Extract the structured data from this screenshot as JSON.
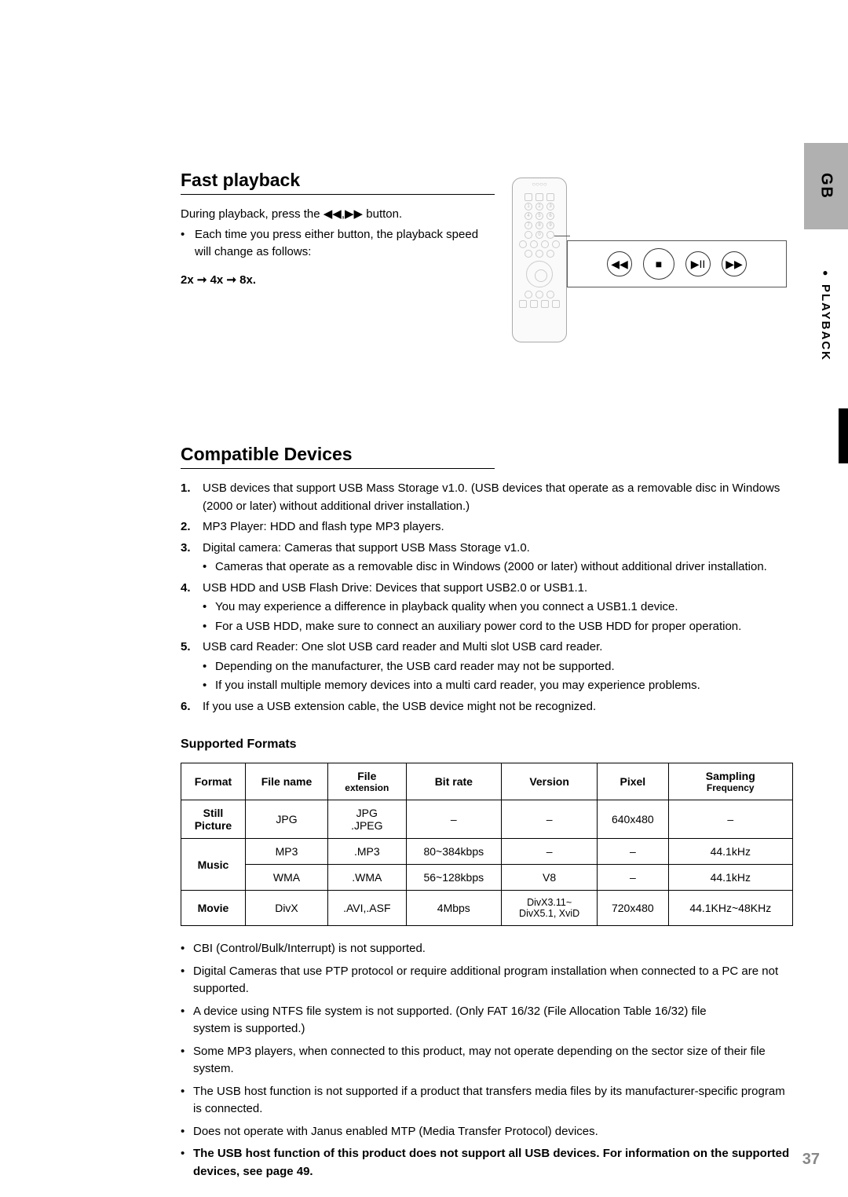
{
  "side": {
    "tab": "GB",
    "label": "PLAYBACK"
  },
  "page_number": "37",
  "fast_playback": {
    "heading": "Fast playback",
    "line1_pre": "During playback, press the ",
    "line1_post": " button.",
    "bullet": "Each time you press either button, the playback speed will change as follows:",
    "speeds": "2x ➞ 4x ➞ 8x."
  },
  "buttons": {
    "rew": "◀◀",
    "stop": "■",
    "playpause": "▶II",
    "ff": "▶▶",
    "inline_rew": "◀◀",
    "inline_sep": ",",
    "inline_ff": "▶▶"
  },
  "compat": {
    "heading": "Compatible Devices",
    "items": [
      {
        "n": "1.",
        "text": "USB devices that support USB Mass Storage v1.0. (USB devices that operate as a removable disc in Windows (2000 or later) without additional driver installation.)",
        "subs": []
      },
      {
        "n": "2.",
        "text": "MP3 Player: HDD and flash type MP3 players.",
        "subs": []
      },
      {
        "n": "3.",
        "text": "Digital camera: Cameras that support USB Mass Storage v1.0.",
        "subs": [
          "Cameras that operate as a removable disc in Windows (2000 or later) without additional driver installation."
        ]
      },
      {
        "n": "4.",
        "text": "USB HDD and USB Flash Drive: Devices that support USB2.0 or USB1.1.",
        "subs": [
          "You may experience a difference in playback quality when you connect a USB1.1 device.",
          "For a USB HDD, make sure to connect an auxiliary power cord to the USB HDD for proper operation."
        ]
      },
      {
        "n": "5.",
        "text": "USB card Reader: One slot USB card reader and Multi slot USB card reader.",
        "subs": [
          "Depending on the manufacturer, the USB card reader may not be supported.",
          "If you install multiple memory devices into a multi card reader, you may experience problems."
        ]
      },
      {
        "n": "6.",
        "text": "If you use a USB extension cable, the USB device might not be recognized.",
        "subs": []
      }
    ]
  },
  "formats": {
    "heading": "Supported Formats",
    "columns": [
      "Format",
      "File name",
      "File\nextension",
      "Bit rate",
      "Version",
      "Pixel",
      "Sampling\nFrequency"
    ],
    "rows": [
      {
        "head": "Still\nPicture",
        "span": 1,
        "cells": [
          [
            "JPG",
            "JPG\n.JPEG",
            "–",
            "–",
            "640x480",
            "–"
          ]
        ]
      },
      {
        "head": "Music",
        "span": 2,
        "cells": [
          [
            "MP3",
            ".MP3",
            "80~384kbps",
            "–",
            "–",
            "44.1kHz"
          ],
          [
            "WMA",
            ".WMA",
            "56~128kbps",
            "V8",
            "–",
            "44.1kHz"
          ]
        ]
      },
      {
        "head": "Movie",
        "span": 1,
        "cells": [
          [
            "DivX",
            ".AVI,.ASF",
            "4Mbps",
            "DivX3.11~\nDivX5.1, XviD",
            "720x480",
            "44.1KHz~48KHz"
          ]
        ]
      }
    ]
  },
  "notes": [
    "CBI (Control/Bulk/Interrupt) is not supported.",
    "Digital Cameras that use PTP protocol or require additional program installation when connected to a PC are not supported.",
    "A device using NTFS file system is not supported. (Only FAT 16/32 (File Allocation Table 16/32) file\nsystem is supported.)",
    "Some MP3 players, when connected to this product, may not operate depending on the sector size of their file system.",
    "The USB host function is not supported if a product that transfers media files by its manufacturer-specific program is connected.",
    "Does not operate with Janus enabled MTP (Media Transfer Protocol) devices."
  ],
  "note_bold": "The USB host function of this product does not support all USB devices. For information on the supported devices, see page 49."
}
